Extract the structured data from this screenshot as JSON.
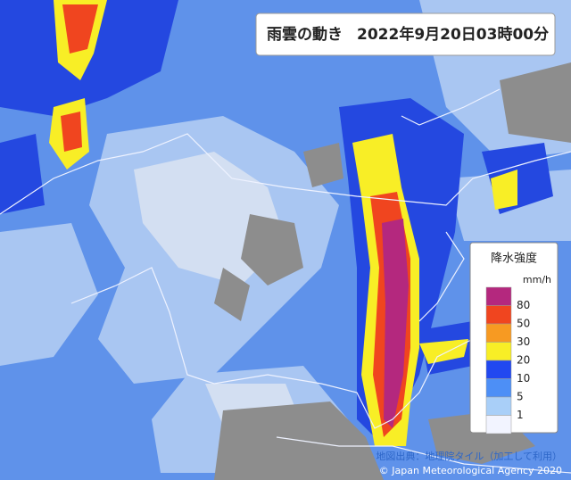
{
  "header": {
    "title": "雨雲の動き",
    "datetime": "2022年9月20日03時00分"
  },
  "legend": {
    "title": "降水強度",
    "unit": "mm/h",
    "labels": [
      "80",
      "50",
      "30",
      "20",
      "10",
      "5",
      "1"
    ],
    "colors": [
      "#b4287e",
      "#f0451f",
      "#f79a22",
      "#f8ee26",
      "#2148f0",
      "#4d8ff6",
      "#a9cff8",
      "#f2f4ff"
    ]
  },
  "attribution": {
    "source": "地図出典：地理院タイル（加工して利用）",
    "copyright": "© Japan Meteorological Agency 2020"
  }
}
